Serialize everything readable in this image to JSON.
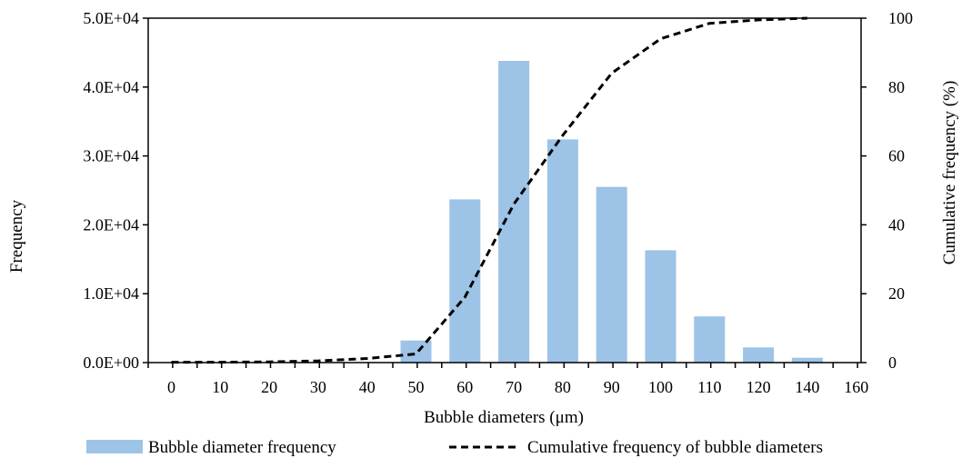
{
  "chart_data": {
    "type": "bar",
    "x_ticks": [
      "0",
      "10",
      "20",
      "30",
      "40",
      "50",
      "60",
      "70",
      "80",
      "90",
      "100",
      "110",
      "120",
      "140",
      "160"
    ],
    "y_left_ticks": [
      "0.0E+00",
      "1.0E+04",
      "2.0E+04",
      "3.0E+04",
      "4.0E+04",
      "5.0E+04"
    ],
    "y_right_ticks": [
      "0",
      "20",
      "40",
      "60",
      "80",
      "100"
    ],
    "xlabel": "Bubble diameters (μm)",
    "ylabel": "Frequency",
    "y2label": "Cumulative frequency (%)",
    "ylim": [
      0,
      50000
    ],
    "y2lim": [
      0,
      100
    ],
    "grid": false,
    "legend_position": "bottom",
    "series": [
      {
        "name": "Bubble diameter frequency",
        "type": "bar",
        "axis": "left",
        "color": "#9dc3e6",
        "categories": [
          "50",
          "60",
          "70",
          "80",
          "90",
          "100",
          "110",
          "120",
          "140"
        ],
        "values": [
          3200,
          23700,
          43800,
          32400,
          25500,
          16300,
          6700,
          2200,
          700
        ]
      },
      {
        "name": "Cumulative frequency of bubble diameters",
        "type": "line",
        "style": "dashed",
        "axis": "right",
        "color": "#000000",
        "x": [
          "0",
          "10",
          "20",
          "30",
          "40",
          "50",
          "60",
          "70",
          "80",
          "90",
          "100",
          "110",
          "120",
          "140"
        ],
        "values": [
          0.1,
          0.1,
          0.2,
          0.5,
          1.2,
          2.5,
          19,
          46,
          66,
          84,
          94,
          98.5,
          99.5,
          100
        ]
      }
    ]
  }
}
